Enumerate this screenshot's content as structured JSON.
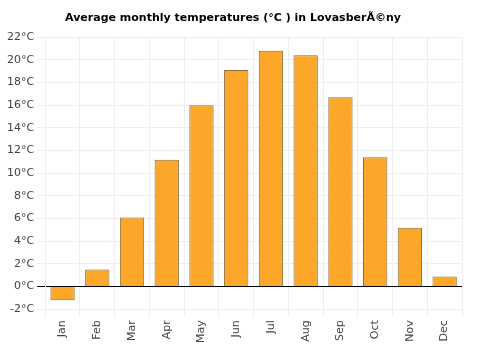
{
  "chart_data": {
    "type": "bar",
    "title": "Average monthly temperatures (°C ) in LovasberÃ©ny",
    "categories": [
      "Jan",
      "Feb",
      "Mar",
      "Apr",
      "May",
      "Jun",
      "Jul",
      "Aug",
      "Sep",
      "Oct",
      "Nov",
      "Dec"
    ],
    "values": [
      -1.2,
      1.5,
      6.1,
      11.2,
      16.0,
      19.1,
      20.8,
      20.4,
      16.7,
      11.4,
      5.2,
      0.9
    ],
    "color": "#fca62a",
    "ylim": [
      -2,
      22
    ],
    "yticks": [
      {
        "value": -2,
        "label": "-2°C"
      },
      {
        "value": 0,
        "label": "0°C"
      },
      {
        "value": 2,
        "label": "2°C"
      },
      {
        "value": 4,
        "label": "4°C"
      },
      {
        "value": 6,
        "label": "6°C"
      },
      {
        "value": 8,
        "label": "8°C"
      },
      {
        "value": 10,
        "label": "10°C"
      },
      {
        "value": 12,
        "label": "12°C"
      },
      {
        "value": 14,
        "label": "14°C"
      },
      {
        "value": 16,
        "label": "16°C"
      },
      {
        "value": 18,
        "label": "18°C"
      },
      {
        "value": 20,
        "label": "20°C"
      },
      {
        "value": 22,
        "label": "22°C"
      }
    ],
    "grid": true
  }
}
